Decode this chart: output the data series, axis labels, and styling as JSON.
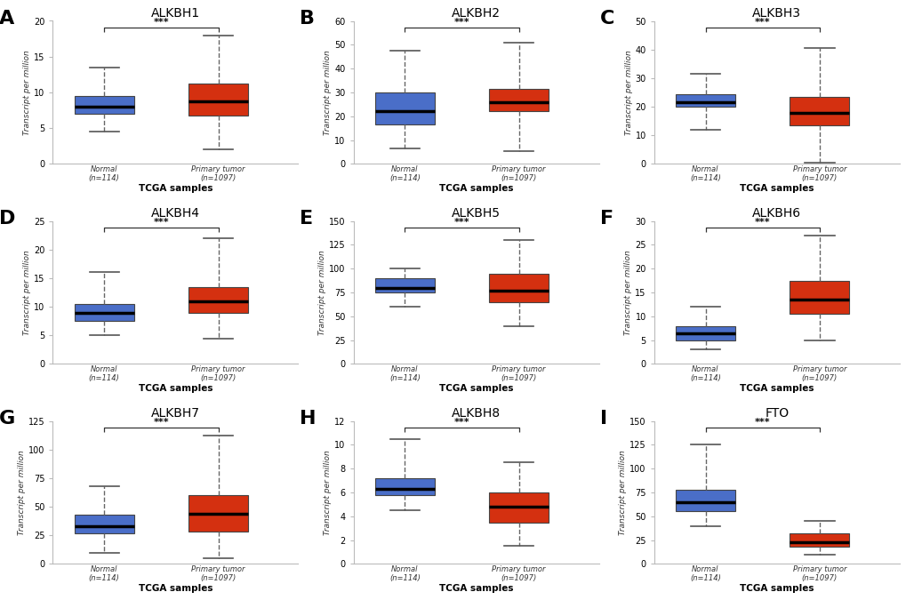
{
  "panels": [
    {
      "label": "A",
      "title": "ALKBH1",
      "ylim": [
        0,
        20
      ],
      "yticks": [
        0,
        5,
        10,
        15,
        20
      ],
      "normal": {
        "whislo": 4.5,
        "q1": 7.0,
        "median": 8.0,
        "q3": 9.5,
        "whishi": 13.5
      },
      "tumor": {
        "whislo": 2.0,
        "q1": 6.8,
        "median": 8.8,
        "q3": 11.2,
        "whishi": 18.0
      }
    },
    {
      "label": "B",
      "title": "ALKBH2",
      "ylim": [
        0,
        60
      ],
      "yticks": [
        0,
        10,
        20,
        30,
        40,
        50,
        60
      ],
      "normal": {
        "whislo": 6.5,
        "q1": 16.5,
        "median": 22.0,
        "q3": 30.0,
        "whishi": 47.5
      },
      "tumor": {
        "whislo": 5.5,
        "q1": 22.0,
        "median": 26.0,
        "q3": 31.5,
        "whishi": 51.0
      }
    },
    {
      "label": "C",
      "title": "ALKBH3",
      "ylim": [
        0,
        50
      ],
      "yticks": [
        0,
        10,
        20,
        30,
        40,
        50
      ],
      "normal": {
        "whislo": 12.0,
        "q1": 20.0,
        "median": 21.5,
        "q3": 24.5,
        "whishi": 31.5
      },
      "tumor": {
        "whislo": 0.5,
        "q1": 13.5,
        "median": 18.0,
        "q3": 23.5,
        "whishi": 40.5
      }
    },
    {
      "label": "D",
      "title": "ALKBH4",
      "ylim": [
        0,
        25
      ],
      "yticks": [
        0,
        5,
        10,
        15,
        20,
        25
      ],
      "normal": {
        "whislo": 5.0,
        "q1": 7.5,
        "median": 9.0,
        "q3": 10.5,
        "whishi": 16.0
      },
      "tumor": {
        "whislo": 4.5,
        "q1": 9.0,
        "median": 11.0,
        "q3": 13.5,
        "whishi": 22.0
      }
    },
    {
      "label": "E",
      "title": "ALKBH5",
      "ylim": [
        0,
        150
      ],
      "yticks": [
        0,
        25,
        50,
        75,
        100,
        125,
        150
      ],
      "normal": {
        "whislo": 60.0,
        "q1": 75.0,
        "median": 80.0,
        "q3": 90.0,
        "whishi": 100.0
      },
      "tumor": {
        "whislo": 40.0,
        "q1": 65.0,
        "median": 77.0,
        "q3": 95.0,
        "whishi": 130.0
      }
    },
    {
      "label": "F",
      "title": "ALKBH6",
      "ylim": [
        0,
        30
      ],
      "yticks": [
        0,
        5,
        10,
        15,
        20,
        25,
        30
      ],
      "normal": {
        "whislo": 3.0,
        "q1": 5.0,
        "median": 6.5,
        "q3": 8.0,
        "whishi": 12.0
      },
      "tumor": {
        "whislo": 5.0,
        "q1": 10.5,
        "median": 13.5,
        "q3": 17.5,
        "whishi": 27.0
      }
    },
    {
      "label": "G",
      "title": "ALKBH7",
      "ylim": [
        0,
        125
      ],
      "yticks": [
        0,
        25,
        50,
        75,
        100,
        125
      ],
      "normal": {
        "whislo": 10.0,
        "q1": 27.0,
        "median": 33.0,
        "q3": 43.0,
        "whishi": 68.0
      },
      "tumor": {
        "whislo": 5.0,
        "q1": 28.0,
        "median": 44.0,
        "q3": 60.0,
        "whishi": 112.0
      }
    },
    {
      "label": "H",
      "title": "ALKBH8",
      "ylim": [
        0,
        12
      ],
      "yticks": [
        0,
        2,
        4,
        6,
        8,
        10,
        12
      ],
      "normal": {
        "whislo": 4.5,
        "q1": 5.8,
        "median": 6.3,
        "q3": 7.2,
        "whishi": 10.5
      },
      "tumor": {
        "whislo": 1.5,
        "q1": 3.5,
        "median": 4.8,
        "q3": 6.0,
        "whishi": 8.5
      }
    },
    {
      "label": "I",
      "title": "FTO",
      "ylim": [
        0,
        150
      ],
      "yticks": [
        0,
        25,
        50,
        75,
        100,
        125,
        150
      ],
      "normal": {
        "whislo": 40.0,
        "q1": 55.0,
        "median": 65.0,
        "q3": 78.0,
        "whishi": 125.0
      },
      "tumor": {
        "whislo": 10.0,
        "q1": 18.0,
        "median": 23.0,
        "q3": 32.0,
        "whishi": 45.0
      }
    }
  ],
  "blue_color": "#4A6EC8",
  "red_color": "#D43010",
  "box_width": 0.52,
  "normal_label": "Normal\n(n=114)",
  "tumor_label": "Primary tumor\n(n=1097)",
  "xlabel": "TCGA samples",
  "ylabel": "Transcript per million",
  "sig_text": "***",
  "background_color": "#FFFFFF",
  "panel_bg": "#FFFFFF"
}
